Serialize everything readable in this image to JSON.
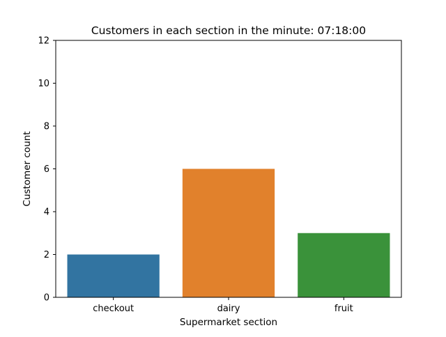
{
  "chart_data": {
    "type": "bar",
    "title": "Customers in each section in the minute: 07:18:00",
    "xlabel": "Supermarket section",
    "ylabel": "Customer count",
    "categories": [
      "checkout",
      "dairy",
      "fruit"
    ],
    "values": [
      2,
      6,
      3
    ],
    "colors": [
      "#3274a1",
      "#e1812c",
      "#3a923a"
    ],
    "ylim": [
      0,
      12
    ],
    "yticks": [
      0,
      2,
      4,
      6,
      8,
      10,
      12
    ],
    "grid": false,
    "legend": "none"
  }
}
